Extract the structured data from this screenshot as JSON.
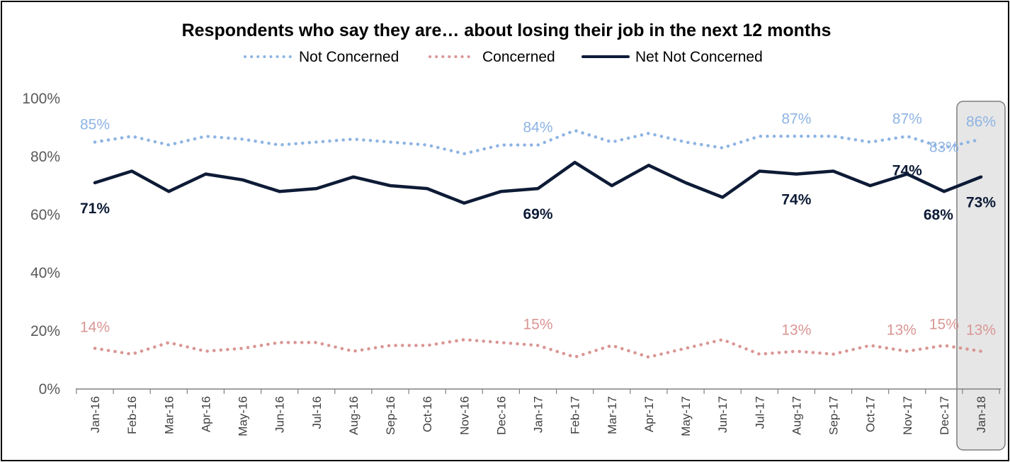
{
  "chart_data": {
    "type": "line",
    "title": "Respondents who say they are… about losing their job in the next 12 months",
    "xlabel": "",
    "ylabel": "",
    "ylim": [
      0,
      100
    ],
    "yticks": [
      "0%",
      "20%",
      "40%",
      "60%",
      "80%",
      "100%"
    ],
    "categories": [
      "Jan-16",
      "Feb-16",
      "Mar-16",
      "Apr-16",
      "May-16",
      "Jun-16",
      "Jul-16",
      "Aug-16",
      "Sep-16",
      "Oct-16",
      "Nov-16",
      "Dec-16",
      "Jan-17",
      "Feb-17",
      "Mar-17",
      "Apr-17",
      "May-17",
      "Jun-17",
      "Jul-17",
      "Aug-17",
      "Sep-17",
      "Oct-17",
      "Nov-17",
      "Dec-17",
      "Jan-18"
    ],
    "grid": false,
    "legend_position": "top",
    "highlighted_category": "Jan-18",
    "series": [
      {
        "name": "Not Concerned",
        "color": "#8eb4e3",
        "style": "dotted",
        "values": [
          85,
          87,
          84,
          87,
          86,
          84,
          85,
          86,
          85,
          84,
          81,
          84,
          84,
          89,
          85,
          88,
          85,
          83,
          87,
          87,
          87,
          85,
          87,
          83,
          86
        ],
        "labels": [
          {
            "index": 0,
            "text": "85%"
          },
          {
            "index": 12,
            "text": "84%"
          },
          {
            "index": 19,
            "text": "87%"
          },
          {
            "index": 22,
            "text": "87%"
          },
          {
            "index": 23,
            "text": "83%"
          },
          {
            "index": 24,
            "text": "86%"
          }
        ]
      },
      {
        "name": "Concerned",
        "color": "#d99694",
        "style": "dotted",
        "values": [
          14,
          12,
          16,
          13,
          14,
          16,
          16,
          13,
          15,
          15,
          17,
          16,
          15,
          11,
          15,
          11,
          14,
          17,
          12,
          13,
          12,
          15,
          13,
          15,
          13
        ],
        "labels": [
          {
            "index": 0,
            "text": "14%"
          },
          {
            "index": 12,
            "text": "15%"
          },
          {
            "index": 19,
            "text": "13%"
          },
          {
            "index": 22,
            "text": "13%"
          },
          {
            "index": 23,
            "text": "15%"
          },
          {
            "index": 24,
            "text": "13%"
          }
        ]
      },
      {
        "name": "Net Not Concerned",
        "color": "#0d1b36",
        "style": "solid",
        "values": [
          71,
          75,
          68,
          74,
          72,
          68,
          69,
          73,
          70,
          69,
          64,
          68,
          69,
          78,
          70,
          77,
          71,
          66,
          75,
          74,
          75,
          70,
          74,
          68,
          73
        ],
        "labels": [
          {
            "index": 0,
            "text": "71%"
          },
          {
            "index": 12,
            "text": "69%"
          },
          {
            "index": 19,
            "text": "74%"
          },
          {
            "index": 22,
            "text": "74%"
          },
          {
            "index": 23,
            "text": "68%"
          },
          {
            "index": 24,
            "text": "73%"
          }
        ]
      }
    ]
  }
}
